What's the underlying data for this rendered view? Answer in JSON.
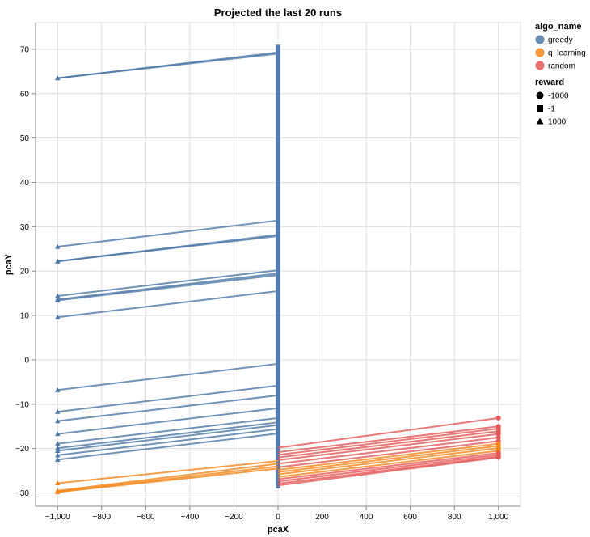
{
  "chart_data": {
    "type": "line",
    "title": "Projected the last 20 runs",
    "xlabel": "pcaX",
    "ylabel": "pcaY",
    "xlim": [
      -1100,
      1100
    ],
    "ylim": [
      -33,
      76
    ],
    "x_ticks": [
      -1000,
      -800,
      -600,
      -400,
      -200,
      0,
      200,
      400,
      600,
      800,
      1000
    ],
    "x_tick_labels": [
      "−1,000",
      "−800",
      "−600",
      "−400",
      "−200",
      "0",
      "200",
      "400",
      "600",
      "800",
      "1,000"
    ],
    "y_ticks": [
      -30,
      -20,
      -10,
      0,
      10,
      20,
      30,
      40,
      50,
      60,
      70
    ],
    "y_tick_labels": [
      "−30",
      "−20",
      "−10",
      "0",
      "10",
      "20",
      "30",
      "40",
      "50",
      "60",
      "70"
    ],
    "grid": true,
    "legend_placement": "right",
    "legends": {
      "color": {
        "title": "algo_name",
        "entries": [
          {
            "label": "greedy",
            "color": "#4c78a8"
          },
          {
            "label": "q_learning",
            "color": "#f58518"
          },
          {
            "label": "random",
            "color": "#e45756"
          }
        ]
      },
      "shape": {
        "title": "reward",
        "entries": [
          {
            "label": "-1000",
            "shape": "circle"
          },
          {
            "label": "-1",
            "shape": "square"
          },
          {
            "label": "1000",
            "shape": "triangle"
          }
        ]
      }
    },
    "series": [
      {
        "algo": "greedy",
        "start": [
          -1000,
          63.5
        ],
        "end": [
          0,
          69.3
        ]
      },
      {
        "algo": "greedy",
        "start": [
          -1000,
          63.5
        ],
        "end": [
          0,
          69.0
        ]
      },
      {
        "algo": "greedy",
        "start": [
          -1000,
          25.5
        ],
        "end": [
          0,
          31.4
        ]
      },
      {
        "algo": "greedy",
        "start": [
          -1000,
          22.2
        ],
        "end": [
          0,
          28.2
        ]
      },
      {
        "algo": "greedy",
        "start": [
          -1000,
          22.2
        ],
        "end": [
          0,
          27.9
        ]
      },
      {
        "algo": "greedy",
        "start": [
          -1000,
          14.4
        ],
        "end": [
          0,
          20.2
        ]
      },
      {
        "algo": "greedy",
        "start": [
          -1000,
          13.6
        ],
        "end": [
          0,
          19.5
        ]
      },
      {
        "algo": "greedy",
        "start": [
          -1000,
          13.4
        ],
        "end": [
          0,
          19.1
        ]
      },
      {
        "algo": "greedy",
        "start": [
          -1000,
          9.6
        ],
        "end": [
          0,
          15.5
        ]
      },
      {
        "algo": "greedy",
        "start": [
          -1000,
          -6.8
        ],
        "end": [
          0,
          -0.9
        ]
      },
      {
        "algo": "greedy",
        "start": [
          -1000,
          -11.7
        ],
        "end": [
          0,
          -5.8
        ]
      },
      {
        "algo": "greedy",
        "start": [
          -1000,
          -13.8
        ],
        "end": [
          0,
          -8.0
        ]
      },
      {
        "algo": "greedy",
        "start": [
          -1000,
          -16.7
        ],
        "end": [
          0,
          -10.9
        ]
      },
      {
        "algo": "greedy",
        "start": [
          -1000,
          -18.9
        ],
        "end": [
          0,
          -13.1
        ]
      },
      {
        "algo": "greedy",
        "start": [
          -1000,
          -19.9
        ],
        "end": [
          0,
          -14.1
        ]
      },
      {
        "algo": "greedy",
        "start": [
          -1000,
          -20.5
        ],
        "end": [
          0,
          -14.7
        ]
      },
      {
        "algo": "greedy",
        "start": [
          -1000,
          -21.5
        ],
        "end": [
          0,
          -15.6
        ]
      },
      {
        "algo": "greedy",
        "start": [
          -1000,
          -22.5
        ],
        "end": [
          0,
          -16.6
        ]
      },
      {
        "algo": "q_learning",
        "start": [
          -1000,
          -27.8
        ],
        "end": [
          0,
          -22.8
        ]
      },
      {
        "algo": "q_learning",
        "start": [
          -1000,
          -29.5
        ],
        "end": [
          0,
          -23.4
        ]
      },
      {
        "algo": "q_learning",
        "start": [
          -1000,
          -29.7
        ],
        "end": [
          0,
          -24.0
        ]
      },
      {
        "algo": "q_learning",
        "start": [
          -1000,
          -29.8
        ],
        "end": [
          0,
          -24.5
        ]
      },
      {
        "algo": "random",
        "start": [
          0,
          -19.8
        ],
        "end": [
          1000,
          -13.1
        ]
      },
      {
        "algo": "random",
        "start": [
          0,
          -20.8
        ],
        "end": [
          1000,
          -15.0
        ]
      },
      {
        "algo": "random",
        "start": [
          0,
          -21.4
        ],
        "end": [
          1000,
          -15.5
        ]
      },
      {
        "algo": "random",
        "start": [
          0,
          -22.0
        ],
        "end": [
          1000,
          -16.1
        ]
      },
      {
        "algo": "random",
        "start": [
          0,
          -22.6
        ],
        "end": [
          1000,
          -16.7
        ]
      },
      {
        "algo": "random",
        "start": [
          0,
          -23.4
        ],
        "end": [
          1000,
          -17.5
        ]
      },
      {
        "algo": "random",
        "start": [
          0,
          -24.2
        ],
        "end": [
          1000,
          -18.3
        ]
      },
      {
        "algo": "q_learning",
        "start": [
          0,
          -24.8
        ],
        "end": [
          1000,
          -18.9
        ]
      },
      {
        "algo": "q_learning",
        "start": [
          0,
          -25.3
        ],
        "end": [
          1000,
          -19.4
        ]
      },
      {
        "algo": "q_learning",
        "start": [
          0,
          -25.8
        ],
        "end": [
          1000,
          -19.9
        ]
      },
      {
        "algo": "q_learning",
        "start": [
          0,
          -26.4
        ],
        "end": [
          1000,
          -20.5
        ]
      },
      {
        "algo": "random",
        "start": [
          0,
          -26.9
        ],
        "end": [
          1000,
          -21.0
        ]
      },
      {
        "algo": "random",
        "start": [
          0,
          -27.4
        ],
        "end": [
          1000,
          -21.4
        ]
      },
      {
        "algo": "random",
        "start": [
          0,
          -27.9
        ],
        "end": [
          1000,
          -21.8
        ]
      },
      {
        "algo": "random",
        "start": [
          0,
          -28.3
        ],
        "end": [
          1000,
          -22.0
        ]
      }
    ],
    "vertical_band": {
      "algo": "greedy",
      "x": 0,
      "y_range": [
        -29,
        71
      ]
    }
  }
}
